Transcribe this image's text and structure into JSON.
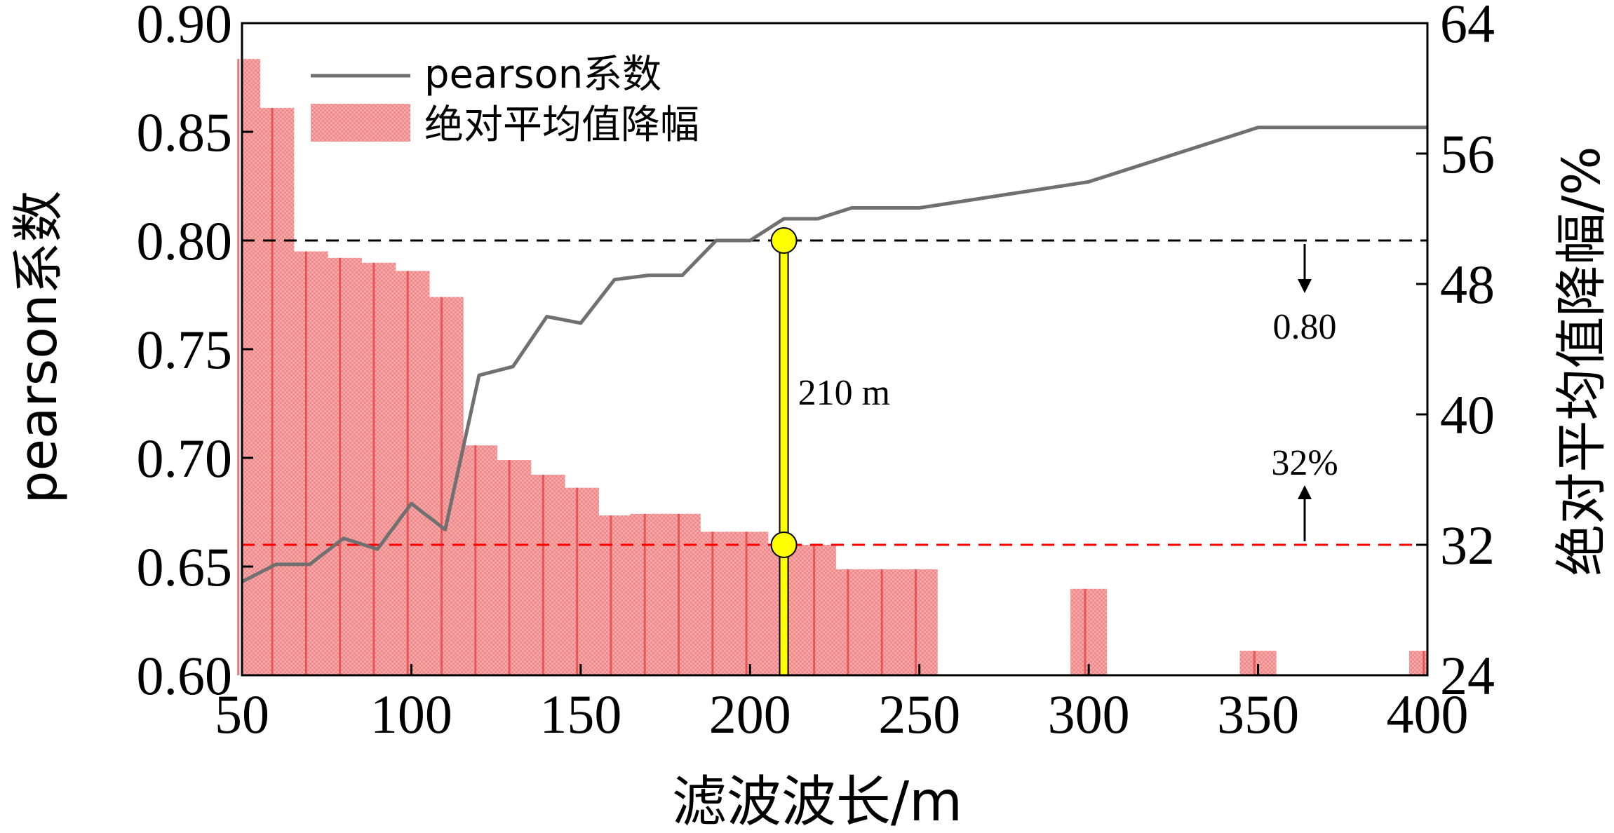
{
  "chart_data": {
    "type": "bar+line",
    "xlabel": "滤波波长/m",
    "ylabel_left": "pearson系数",
    "ylabel_right": "绝对平均值降幅/%",
    "xlim": [
      50,
      400
    ],
    "ylim_left": [
      0.6,
      0.9
    ],
    "ylim_right": [
      24,
      64
    ],
    "x_ticks": [
      50,
      100,
      150,
      200,
      250,
      300,
      350,
      400
    ],
    "y_left_ticks": [
      "0.60",
      "0.65",
      "0.70",
      "0.75",
      "0.80",
      "0.85",
      "0.90"
    ],
    "y_right_ticks": [
      "24",
      "32",
      "40",
      "48",
      "56",
      "64"
    ],
    "legend": {
      "position": "top-left",
      "line_label": "pearson系数",
      "bar_label": "绝对平均值降幅"
    },
    "series": [
      {
        "name": "pearson系数",
        "kind": "line",
        "axis": "left",
        "color": "#707070",
        "x": [
          50,
          60,
          70,
          80,
          90,
          100,
          110,
          120,
          130,
          140,
          150,
          160,
          170,
          180,
          190,
          200,
          210,
          220,
          230,
          240,
          250,
          300,
          350,
          400
        ],
        "y": [
          0.643,
          0.651,
          0.651,
          0.663,
          0.658,
          0.679,
          0.667,
          0.738,
          0.742,
          0.765,
          0.762,
          0.782,
          0.784,
          0.784,
          0.8,
          0.8,
          0.81,
          0.81,
          0.815,
          0.815,
          0.815,
          0.827,
          0.852,
          0.852
        ]
      },
      {
        "name": "绝对平均值降幅",
        "kind": "bar",
        "axis": "right",
        "color": "#f08080",
        "x": [
          50,
          60,
          70,
          80,
          90,
          100,
          110,
          120,
          130,
          140,
          150,
          160,
          170,
          180,
          190,
          200,
          210,
          220,
          230,
          240,
          250,
          300,
          350,
          400
        ],
        "y": [
          61.8,
          58.8,
          50.0,
          49.6,
          49.3,
          48.8,
          47.2,
          38.1,
          37.2,
          36.3,
          35.5,
          33.8,
          33.9,
          33.9,
          32.8,
          32.8,
          32.0,
          32.0,
          30.5,
          30.5,
          30.5,
          29.3,
          25.5,
          25.5
        ]
      }
    ],
    "reference_lines": [
      {
        "axis": "left",
        "value": 0.8,
        "style": "dashed",
        "color": "#000000",
        "label": "0.80",
        "arrow": "down"
      },
      {
        "axis": "right",
        "value": 32,
        "style": "dashed",
        "color": "#ff0000",
        "label": "32%",
        "arrow": "up"
      }
    ],
    "marker": {
      "x": 210,
      "label": "210 m",
      "color": "#ffff00"
    }
  }
}
